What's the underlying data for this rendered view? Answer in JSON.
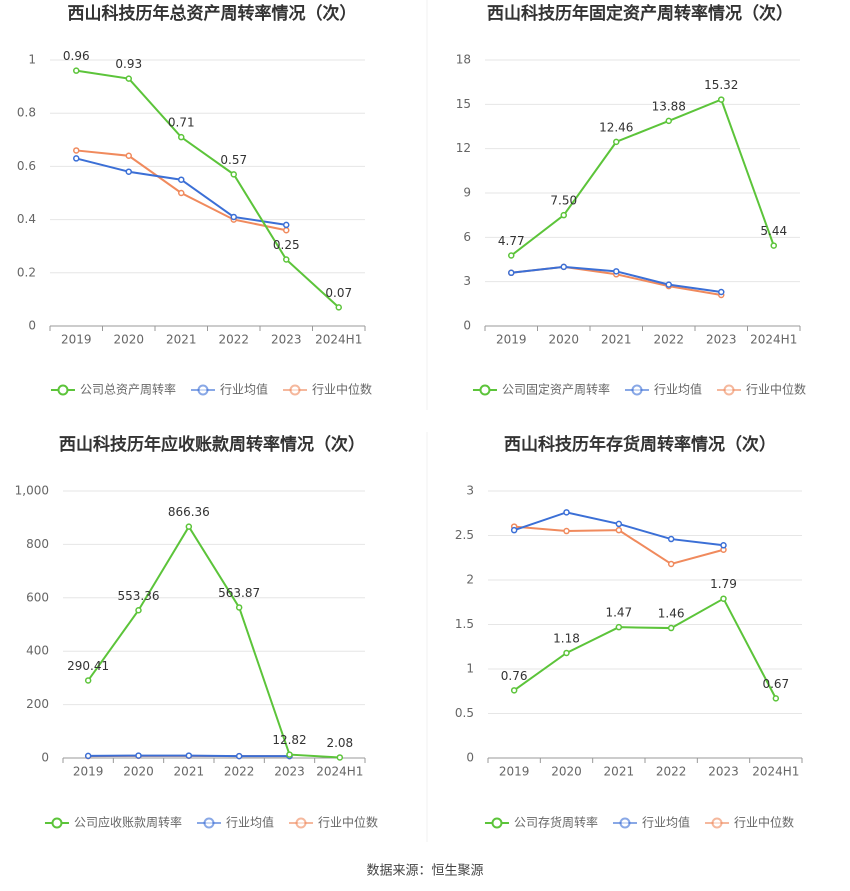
{
  "chart_data": [
    {
      "type": "line",
      "title": "西山科技历年总资产周转率情况（次）",
      "categories": [
        "2019",
        "2020",
        "2021",
        "2022",
        "2023",
        "2024H1"
      ],
      "series": [
        {
          "name": "公司总资产周转率",
          "color": "#5cc43a",
          "values": [
            0.96,
            0.93,
            0.71,
            0.57,
            0.25,
            0.07
          ],
          "value_labels": [
            "0.96",
            "0.93",
            "0.71",
            "0.57",
            "0.25",
            "0.07"
          ]
        },
        {
          "name": "行业均值",
          "color": "#3b6fd6",
          "values": [
            0.63,
            0.58,
            0.55,
            0.41,
            0.38,
            null
          ]
        },
        {
          "name": "行业中位数",
          "color": "#f08a5d",
          "values": [
            0.66,
            0.64,
            0.5,
            0.4,
            0.36,
            null
          ]
        }
      ],
      "ylim": [
        0,
        1
      ],
      "yticks": [
        0,
        0.2,
        0.4,
        0.6,
        0.8,
        1
      ],
      "grid": true
    },
    {
      "type": "line",
      "title": "西山科技历年固定资产周转率情况（次）",
      "categories": [
        "2019",
        "2020",
        "2021",
        "2022",
        "2023",
        "2024H1"
      ],
      "series": [
        {
          "name": "公司固定资产周转率",
          "color": "#5cc43a",
          "values": [
            4.77,
            7.5,
            12.46,
            13.88,
            15.32,
            5.44
          ],
          "value_labels": [
            "4.77",
            "7.50",
            "12.46",
            "13.88",
            "15.32",
            "5.44"
          ]
        },
        {
          "name": "行业均值",
          "color": "#3b6fd6",
          "values": [
            3.6,
            4.0,
            3.7,
            2.8,
            2.3,
            null
          ]
        },
        {
          "name": "行业中位数",
          "color": "#f08a5d",
          "values": [
            3.6,
            4.0,
            3.5,
            2.7,
            2.1,
            null
          ]
        }
      ],
      "ylim": [
        0,
        18
      ],
      "yticks": [
        0,
        3,
        6,
        9,
        12,
        15,
        18
      ],
      "grid": true
    },
    {
      "type": "line",
      "title": "西山科技历年应收账款周转率情况（次）",
      "categories": [
        "2019",
        "2020",
        "2021",
        "2022",
        "2023",
        "2024H1"
      ],
      "series": [
        {
          "name": "公司应收账款周转率",
          "color": "#5cc43a",
          "values": [
            290.41,
            553.36,
            866.36,
            563.87,
            12.82,
            2.08
          ],
          "value_labels": [
            "290.41",
            "553.36",
            "866.36",
            "563.87",
            "12.82",
            "2.08"
          ]
        },
        {
          "name": "行业均值",
          "color": "#3b6fd6",
          "values": [
            8,
            9,
            9,
            7,
            7,
            null
          ]
        },
        {
          "name": "行业中位数",
          "color": "#f08a5d",
          "values": [
            7,
            8,
            8,
            7,
            7,
            null
          ]
        }
      ],
      "ylim": [
        0,
        1000
      ],
      "yticks": [
        0,
        200,
        400,
        600,
        800,
        {
          "value": 1000,
          "label": "1,000"
        }
      ],
      "grid": true
    },
    {
      "type": "line",
      "title": "西山科技历年存货周转率情况（次）",
      "categories": [
        "2019",
        "2020",
        "2021",
        "2022",
        "2023",
        "2024H1"
      ],
      "series": [
        {
          "name": "公司存货周转率",
          "color": "#5cc43a",
          "values": [
            0.76,
            1.18,
            1.47,
            1.46,
            1.79,
            0.67
          ],
          "value_labels": [
            "0.76",
            "1.18",
            "1.47",
            "1.46",
            "1.79",
            "0.67"
          ]
        },
        {
          "name": "行业均值",
          "color": "#3b6fd6",
          "values": [
            2.56,
            2.76,
            2.63,
            2.46,
            2.39,
            null
          ]
        },
        {
          "name": "行业中位数",
          "color": "#f08a5d",
          "values": [
            2.6,
            2.55,
            2.56,
            2.18,
            2.34,
            null
          ]
        }
      ],
      "ylim": [
        0,
        3
      ],
      "yticks": [
        0,
        0.5,
        1,
        1.5,
        2,
        2.5,
        3
      ],
      "grid": true
    }
  ],
  "source": "数据来源：恒生聚源"
}
